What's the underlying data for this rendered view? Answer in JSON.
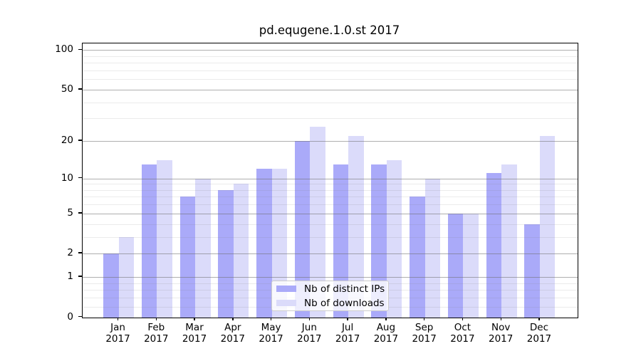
{
  "title": "pd.equgene.1.0.st 2017",
  "colors": {
    "background": "#ffffff",
    "spine": "#000000",
    "bar_distinct_ips": "#aaaaf9",
    "bar_downloads": "#dbdbfa",
    "grid_major": "#b0b0b0",
    "grid_minor": "#e9e9e9",
    "legend_border": "#cccccc"
  },
  "legend": {
    "items": [
      {
        "label": "Nb of distinct IPs",
        "color": "#aaaaf9"
      },
      {
        "label": "Nb of downloads",
        "color": "#dbdbfa"
      }
    ]
  },
  "chart_data": {
    "type": "bar",
    "title": "pd.equgene.1.0.st 2017",
    "categories": [
      "Jan",
      "Feb",
      "Mar",
      "Apr",
      "May",
      "Jun",
      "Jul",
      "Aug",
      "Sep",
      "Oct",
      "Nov",
      "Dec"
    ],
    "year_label": "2017",
    "series": [
      {
        "name": "Nb of distinct IPs",
        "color": "#aaaaf9",
        "values": [
          2,
          13,
          7,
          8,
          12,
          20,
          13,
          13,
          7,
          5,
          11,
          4
        ]
      },
      {
        "name": "Nb of downloads",
        "color": "#dbdbfa",
        "values": [
          3,
          14,
          10,
          9,
          12,
          26,
          22,
          14,
          10,
          5,
          13,
          22
        ]
      }
    ],
    "xlabel": "",
    "ylabel": "",
    "yscale": "log(1+x)",
    "ylim": [
      0,
      113
    ],
    "yticks": [
      100,
      50,
      20,
      10,
      5,
      2,
      1,
      0
    ],
    "minor_yticks": [
      0.2,
      0.4,
      0.6,
      0.8,
      3,
      4,
      6,
      7,
      8,
      9,
      30,
      40,
      60,
      70,
      80,
      90
    ],
    "grid": "on",
    "legend_position": "lower center-right inside plot"
  }
}
